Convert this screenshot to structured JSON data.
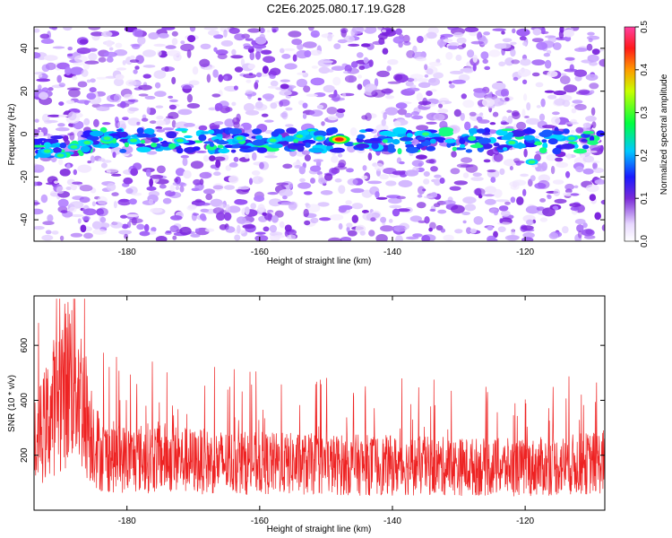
{
  "title": "C2E6.2025.080.17.19.G28",
  "colors": {
    "snr_line": "#ee2222",
    "frame": "#000000"
  },
  "chart_data": [
    {
      "type": "heatmap",
      "title": "C2E6.2025.080.17.19.G28",
      "xlabel": "Height of straight line (km)",
      "ylabel": "Frequency (Hz)",
      "xlim": [
        -194,
        -108
      ],
      "ylim": [
        -50,
        50
      ],
      "x_ticks": [
        -180,
        -160,
        -140,
        -120
      ],
      "y_ticks": [
        -40,
        -20,
        0,
        20,
        40
      ],
      "colorbar": {
        "label": "Normalized spectral amplitude",
        "range": [
          0.0,
          0.5
        ],
        "ticks": [
          0.0,
          0.1,
          0.2,
          0.3,
          0.4,
          0.5
        ]
      },
      "description_data": {
        "dominant_band_center_hz": -3,
        "band_peak_height_km": -148,
        "band_peak_amplitude": 0.45
      }
    },
    {
      "type": "line",
      "xlabel": "Height of straight line (km)",
      "ylabel": "SNR (10 * v/v)",
      "xlim": [
        -194,
        -108
      ],
      "ylim": [
        0,
        780
      ],
      "x_ticks": [
        -180,
        -160,
        -140,
        -120
      ],
      "y_ticks": [
        200,
        400,
        600
      ],
      "series": [
        {
          "name": "SNR",
          "x": [
            -194,
            -192,
            -190,
            -188,
            -186,
            -184,
            -180,
            -175,
            -170,
            -160,
            -150,
            -140,
            -130,
            -120,
            -115,
            -110,
            -108
          ],
          "values": [
            300,
            420,
            560,
            660,
            430,
            260,
            240,
            250,
            230,
            220,
            215,
            210,
            205,
            200,
            210,
            220,
            230
          ]
        }
      ]
    }
  ]
}
